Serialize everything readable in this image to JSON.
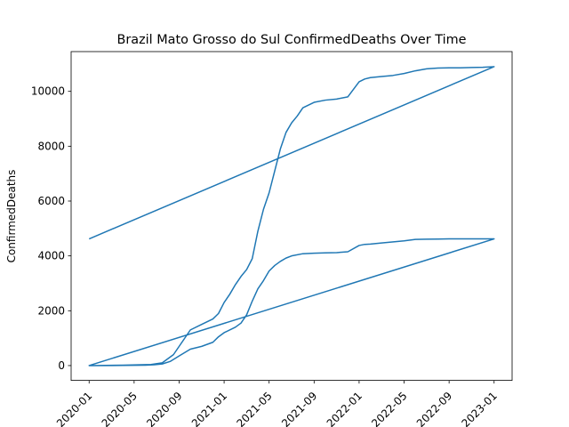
{
  "chart_data": {
    "type": "line",
    "title": "Brazil Mato Grosso do Sul ConfirmedDeaths Over Time",
    "xlabel": "",
    "ylabel": "ConfirmedDeaths",
    "x_ticks": [
      "2020-01",
      "2020-05",
      "2020-09",
      "2021-01",
      "2021-05",
      "2021-09",
      "2022-01",
      "2022-05",
      "2022-09",
      "2023-01"
    ],
    "y_ticks": [
      0,
      2000,
      4000,
      6000,
      8000,
      10000
    ],
    "xlim_months": [
      -1.6,
      37.6
    ],
    "ylim": [
      -540,
      11450
    ],
    "color": "#1f77b4",
    "series": [
      {
        "name": "ConfirmedDeaths",
        "x_months": [
          0,
          3,
          5,
          5.8,
          6.5,
          7.2,
          8,
          9,
          10,
          11,
          11.5,
          12,
          13,
          13.5,
          14,
          14.5,
          15,
          15.5,
          16,
          16.5,
          17,
          17.5,
          18,
          19,
          20,
          21,
          22,
          23,
          24,
          24.5,
          25,
          26,
          28,
          29,
          30,
          31,
          32,
          33,
          36,
          0,
          3,
          5.5,
          6.5,
          7.5,
          8,
          8.5,
          9,
          10,
          11,
          11.5,
          12,
          12.5,
          13,
          13.5,
          14,
          14.5,
          15,
          15.5,
          16,
          16.5,
          17,
          17.5,
          18,
          18.5,
          19,
          20,
          21,
          22,
          23,
          24,
          24.5,
          25,
          26,
          27,
          28,
          29,
          30,
          31,
          32,
          33,
          34,
          35,
          36,
          0
        ],
        "values": [
          0,
          5,
          15,
          30,
          60,
          150,
          350,
          600,
          700,
          850,
          1050,
          1200,
          1400,
          1550,
          1850,
          2350,
          2800,
          3100,
          3450,
          3650,
          3800,
          3920,
          4000,
          4080,
          4100,
          4110,
          4120,
          4150,
          4380,
          4420,
          4430,
          4470,
          4550,
          4600,
          4610,
          4615,
          4620,
          4620,
          4620,
          0,
          15,
          40,
          100,
          400,
          700,
          1000,
          1300,
          1500,
          1700,
          1900,
          2300,
          2600,
          2950,
          3250,
          3500,
          3900,
          4900,
          5700,
          6300,
          7100,
          7900,
          8500,
          8850,
          9100,
          9400,
          9600,
          9680,
          9720,
          9800,
          10350,
          10450,
          10500,
          10540,
          10580,
          10650,
          10750,
          10820,
          10850,
          10860,
          10860,
          10870,
          10880,
          10900,
          4620
        ]
      }
    ]
  }
}
